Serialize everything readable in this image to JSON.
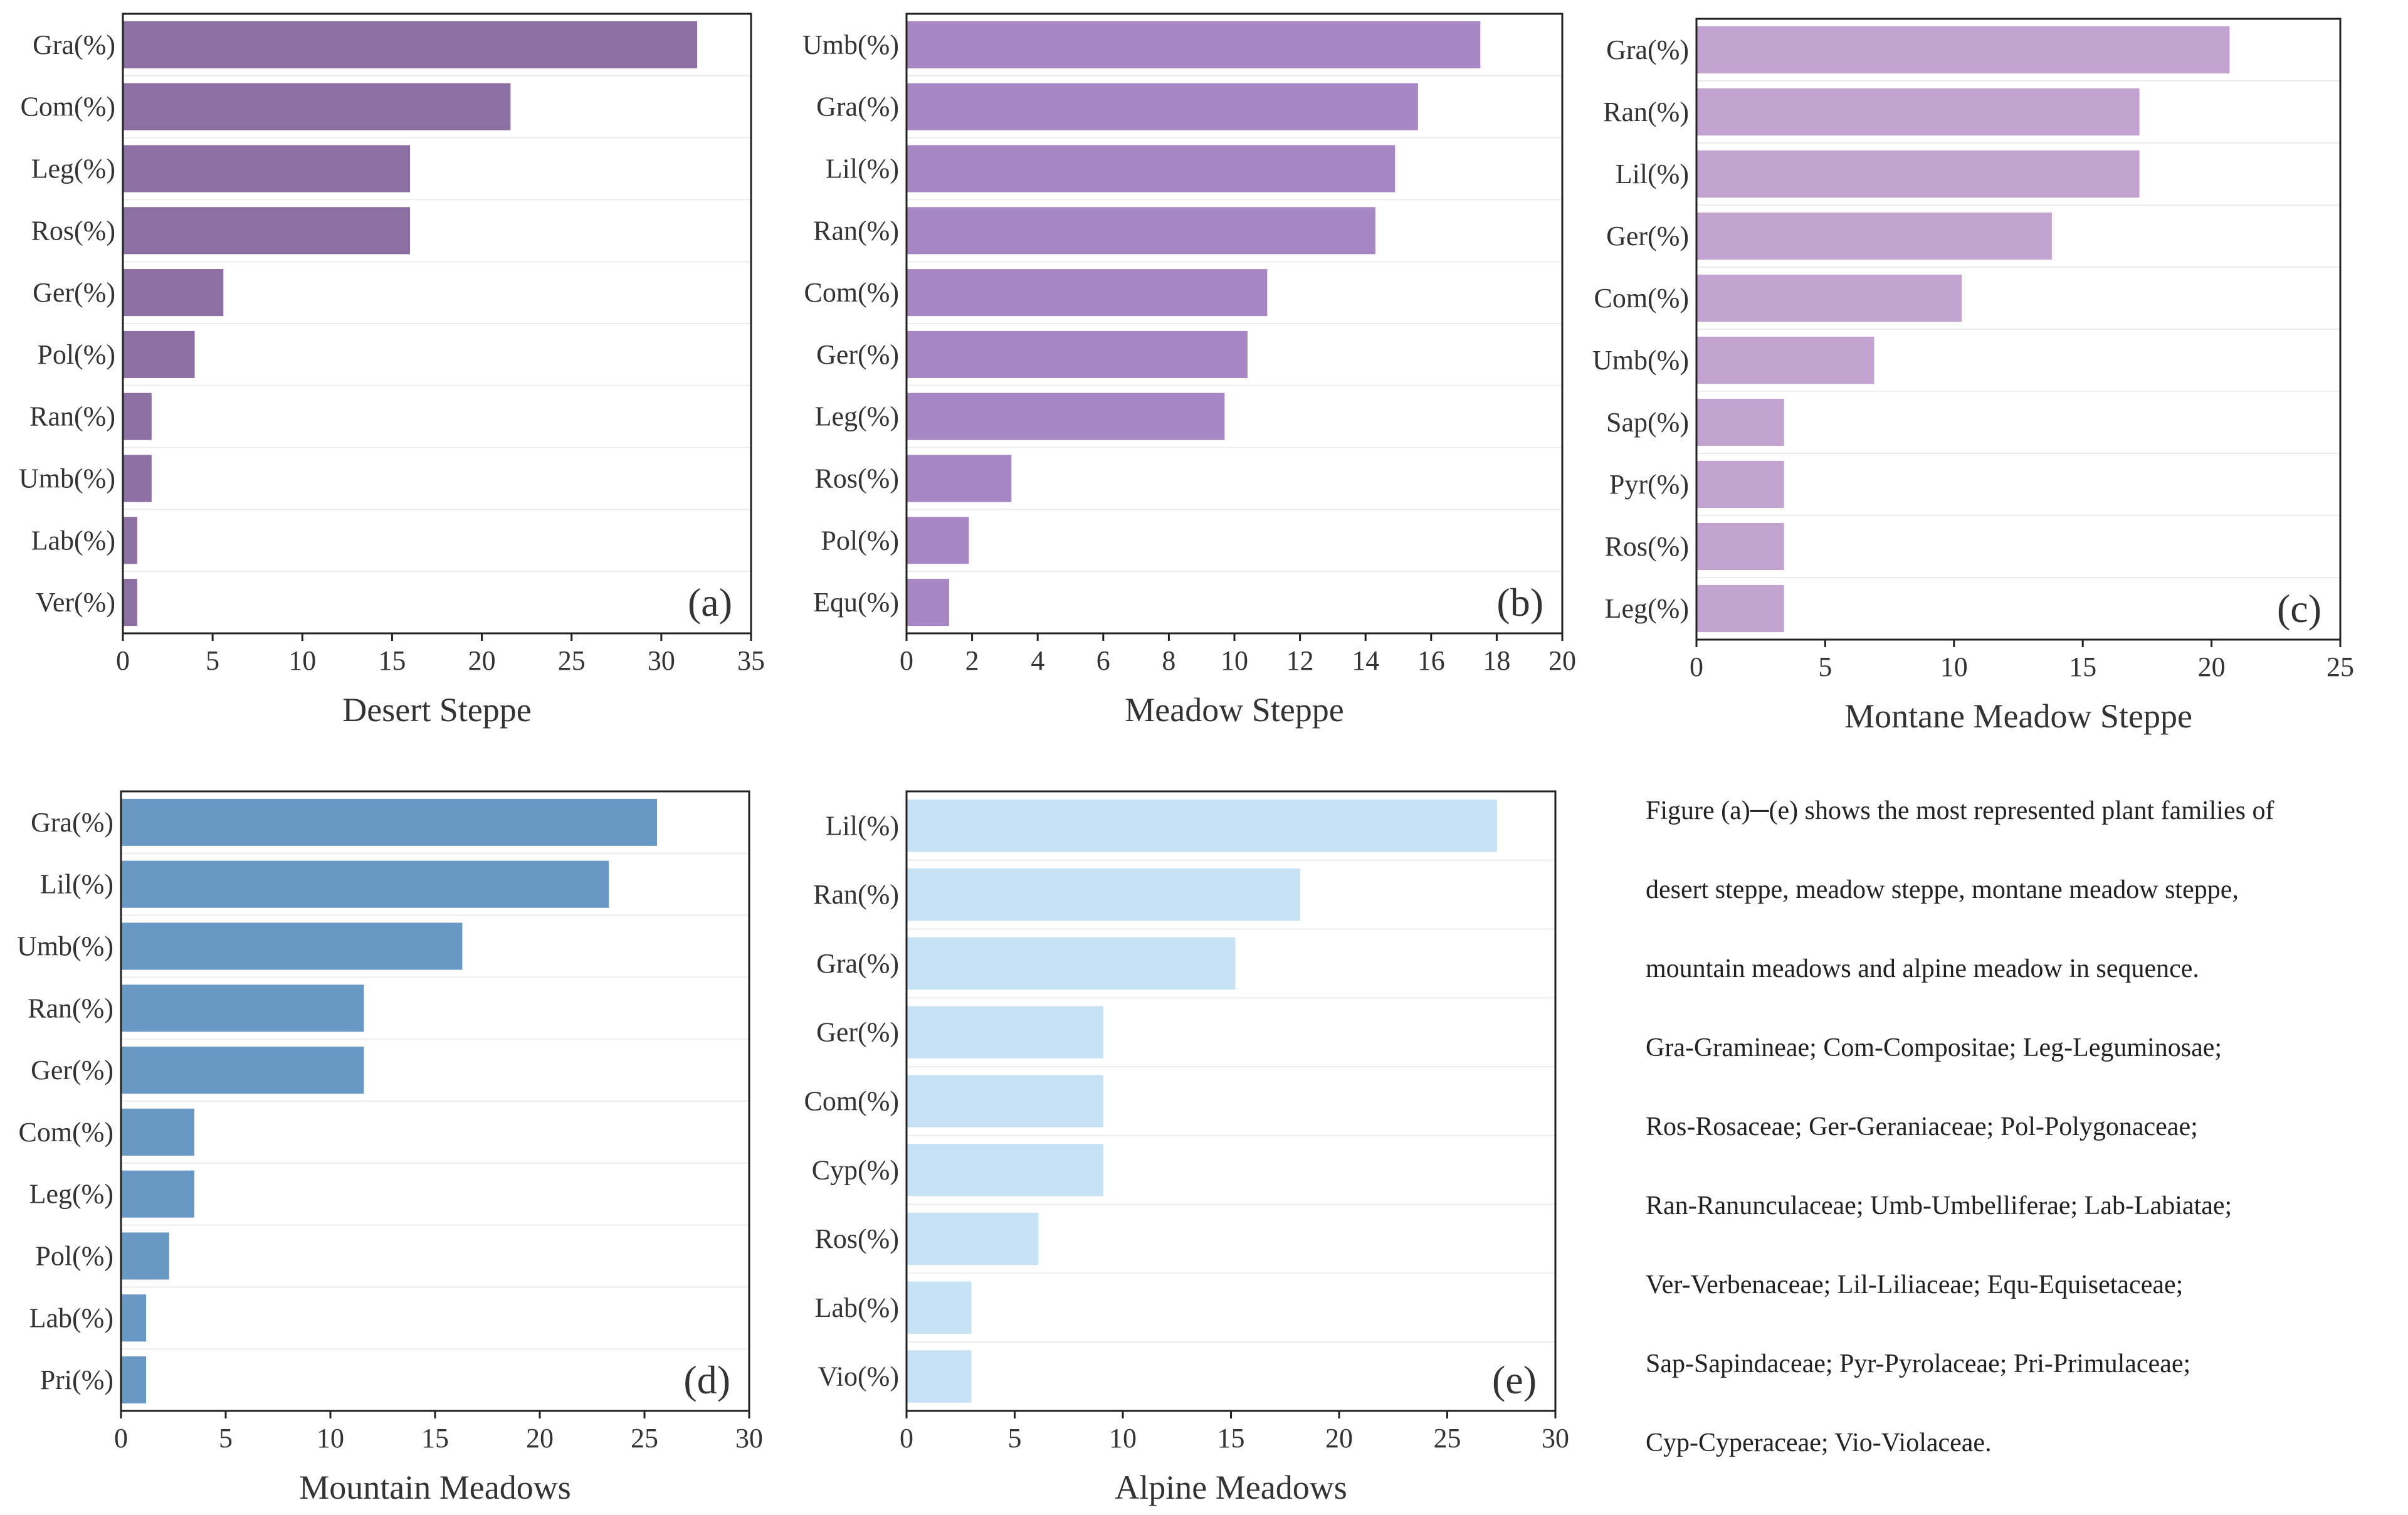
{
  "chart_data": [
    {
      "id": "a",
      "type": "bar",
      "orientation": "horizontal",
      "panel_label": "(a)",
      "xlabel": "Desert Steppe",
      "xlim": [
        0,
        35
      ],
      "xticks": [
        0,
        5,
        10,
        15,
        20,
        25,
        30,
        35
      ],
      "categories": [
        "Gra(%)",
        "Com(%)",
        "Leg(%)",
        "Ros(%)",
        "Ger(%)",
        "Pol(%)",
        "Ran(%)",
        "Umb(%)",
        "Lab(%)",
        "Ver(%)"
      ],
      "values": [
        32.0,
        21.6,
        16.0,
        16.0,
        5.6,
        4.0,
        1.6,
        1.6,
        0.8,
        0.8
      ],
      "color": "#8c6fa3"
    },
    {
      "id": "b",
      "type": "bar",
      "orientation": "horizontal",
      "panel_label": "(b)",
      "xlabel": "Meadow Steppe",
      "xlim": [
        0,
        20
      ],
      "xticks": [
        0,
        2,
        4,
        6,
        8,
        10,
        12,
        14,
        16,
        18,
        20
      ],
      "categories": [
        "Umb(%)",
        "Gra(%)",
        "Lil(%)",
        "Ran(%)",
        "Com(%)",
        "Ger(%)",
        "Leg(%)",
        "Ros(%)",
        "Pol(%)",
        "Equ(%)"
      ],
      "values": [
        17.5,
        15.6,
        14.9,
        14.3,
        11.0,
        10.4,
        9.7,
        3.2,
        1.9,
        1.3
      ],
      "color": "#a888c4"
    },
    {
      "id": "c",
      "type": "bar",
      "orientation": "horizontal",
      "panel_label": "(c)",
      "xlabel": "Montane Meadow Steppe",
      "xlim": [
        0,
        25
      ],
      "xticks": [
        0,
        5,
        10,
        15,
        20,
        25
      ],
      "categories": [
        "Gra(%)",
        "Ran(%)",
        "Lil(%)",
        "Ger(%)",
        "Com(%)",
        "Umb(%)",
        "Sap(%)",
        "Pyr(%)",
        "Ros(%)",
        "Leg(%)"
      ],
      "values": [
        20.7,
        17.2,
        17.2,
        13.8,
        10.3,
        6.9,
        3.4,
        3.4,
        3.4,
        3.4
      ],
      "color": "#c2a3d0"
    },
    {
      "id": "d",
      "type": "bar",
      "orientation": "horizontal",
      "panel_label": "(d)",
      "xlabel": "Mountain Meadows",
      "xlim": [
        0,
        30
      ],
      "xticks": [
        0,
        5,
        10,
        15,
        20,
        25,
        30
      ],
      "categories": [
        "Gra(%)",
        "Lil(%)",
        "Umb(%)",
        "Ran(%)",
        "Ger(%)",
        "Com(%)",
        "Leg(%)",
        "Pol(%)",
        "Lab(%)",
        "Pri(%)"
      ],
      "values": [
        25.6,
        23.3,
        16.3,
        11.6,
        11.6,
        3.5,
        3.5,
        2.3,
        1.2,
        1.2
      ],
      "color": "#6a98c4"
    },
    {
      "id": "e",
      "type": "bar",
      "orientation": "horizontal",
      "panel_label": "(e)",
      "xlabel": "Alpine Meadows",
      "xlim": [
        0,
        30
      ],
      "xticks": [
        0,
        5,
        10,
        15,
        20,
        25,
        30
      ],
      "categories": [
        "Lil(%)",
        "Ran(%)",
        "Gra(%)",
        "Ger(%)",
        "Com(%)",
        "Cyp(%)",
        "Ros(%)",
        "Lab(%)",
        "Vio(%)"
      ],
      "values": [
        27.3,
        18.2,
        15.2,
        9.1,
        9.1,
        9.1,
        6.1,
        3.0,
        3.0
      ],
      "color": "#c8e2f5"
    }
  ],
  "caption": [
    "Figure (a)─(e) shows the most represented plant families of",
    "desert steppe, meadow steppe, montane meadow steppe,",
    "mountain meadows and alpine meadow in sequence.",
    "Gra-Gramineae; Com-Compositae; Leg-Leguminosae;",
    "Ros-Rosaceae; Ger-Geraniaceae; Pol-Polygonaceae;",
    "Ran-Ranunculaceae; Umb-Umbelliferae; Lab-Labiatae;",
    "Ver-Verbenaceae; Lil-Liliaceae; Equ-Equisetaceae;",
    "Sap-Sapindaceae; Pyr-Pyrolaceae; Pri-Primulaceae;",
    "Cyp-Cyperaceae; Vio-Violaceae."
  ]
}
